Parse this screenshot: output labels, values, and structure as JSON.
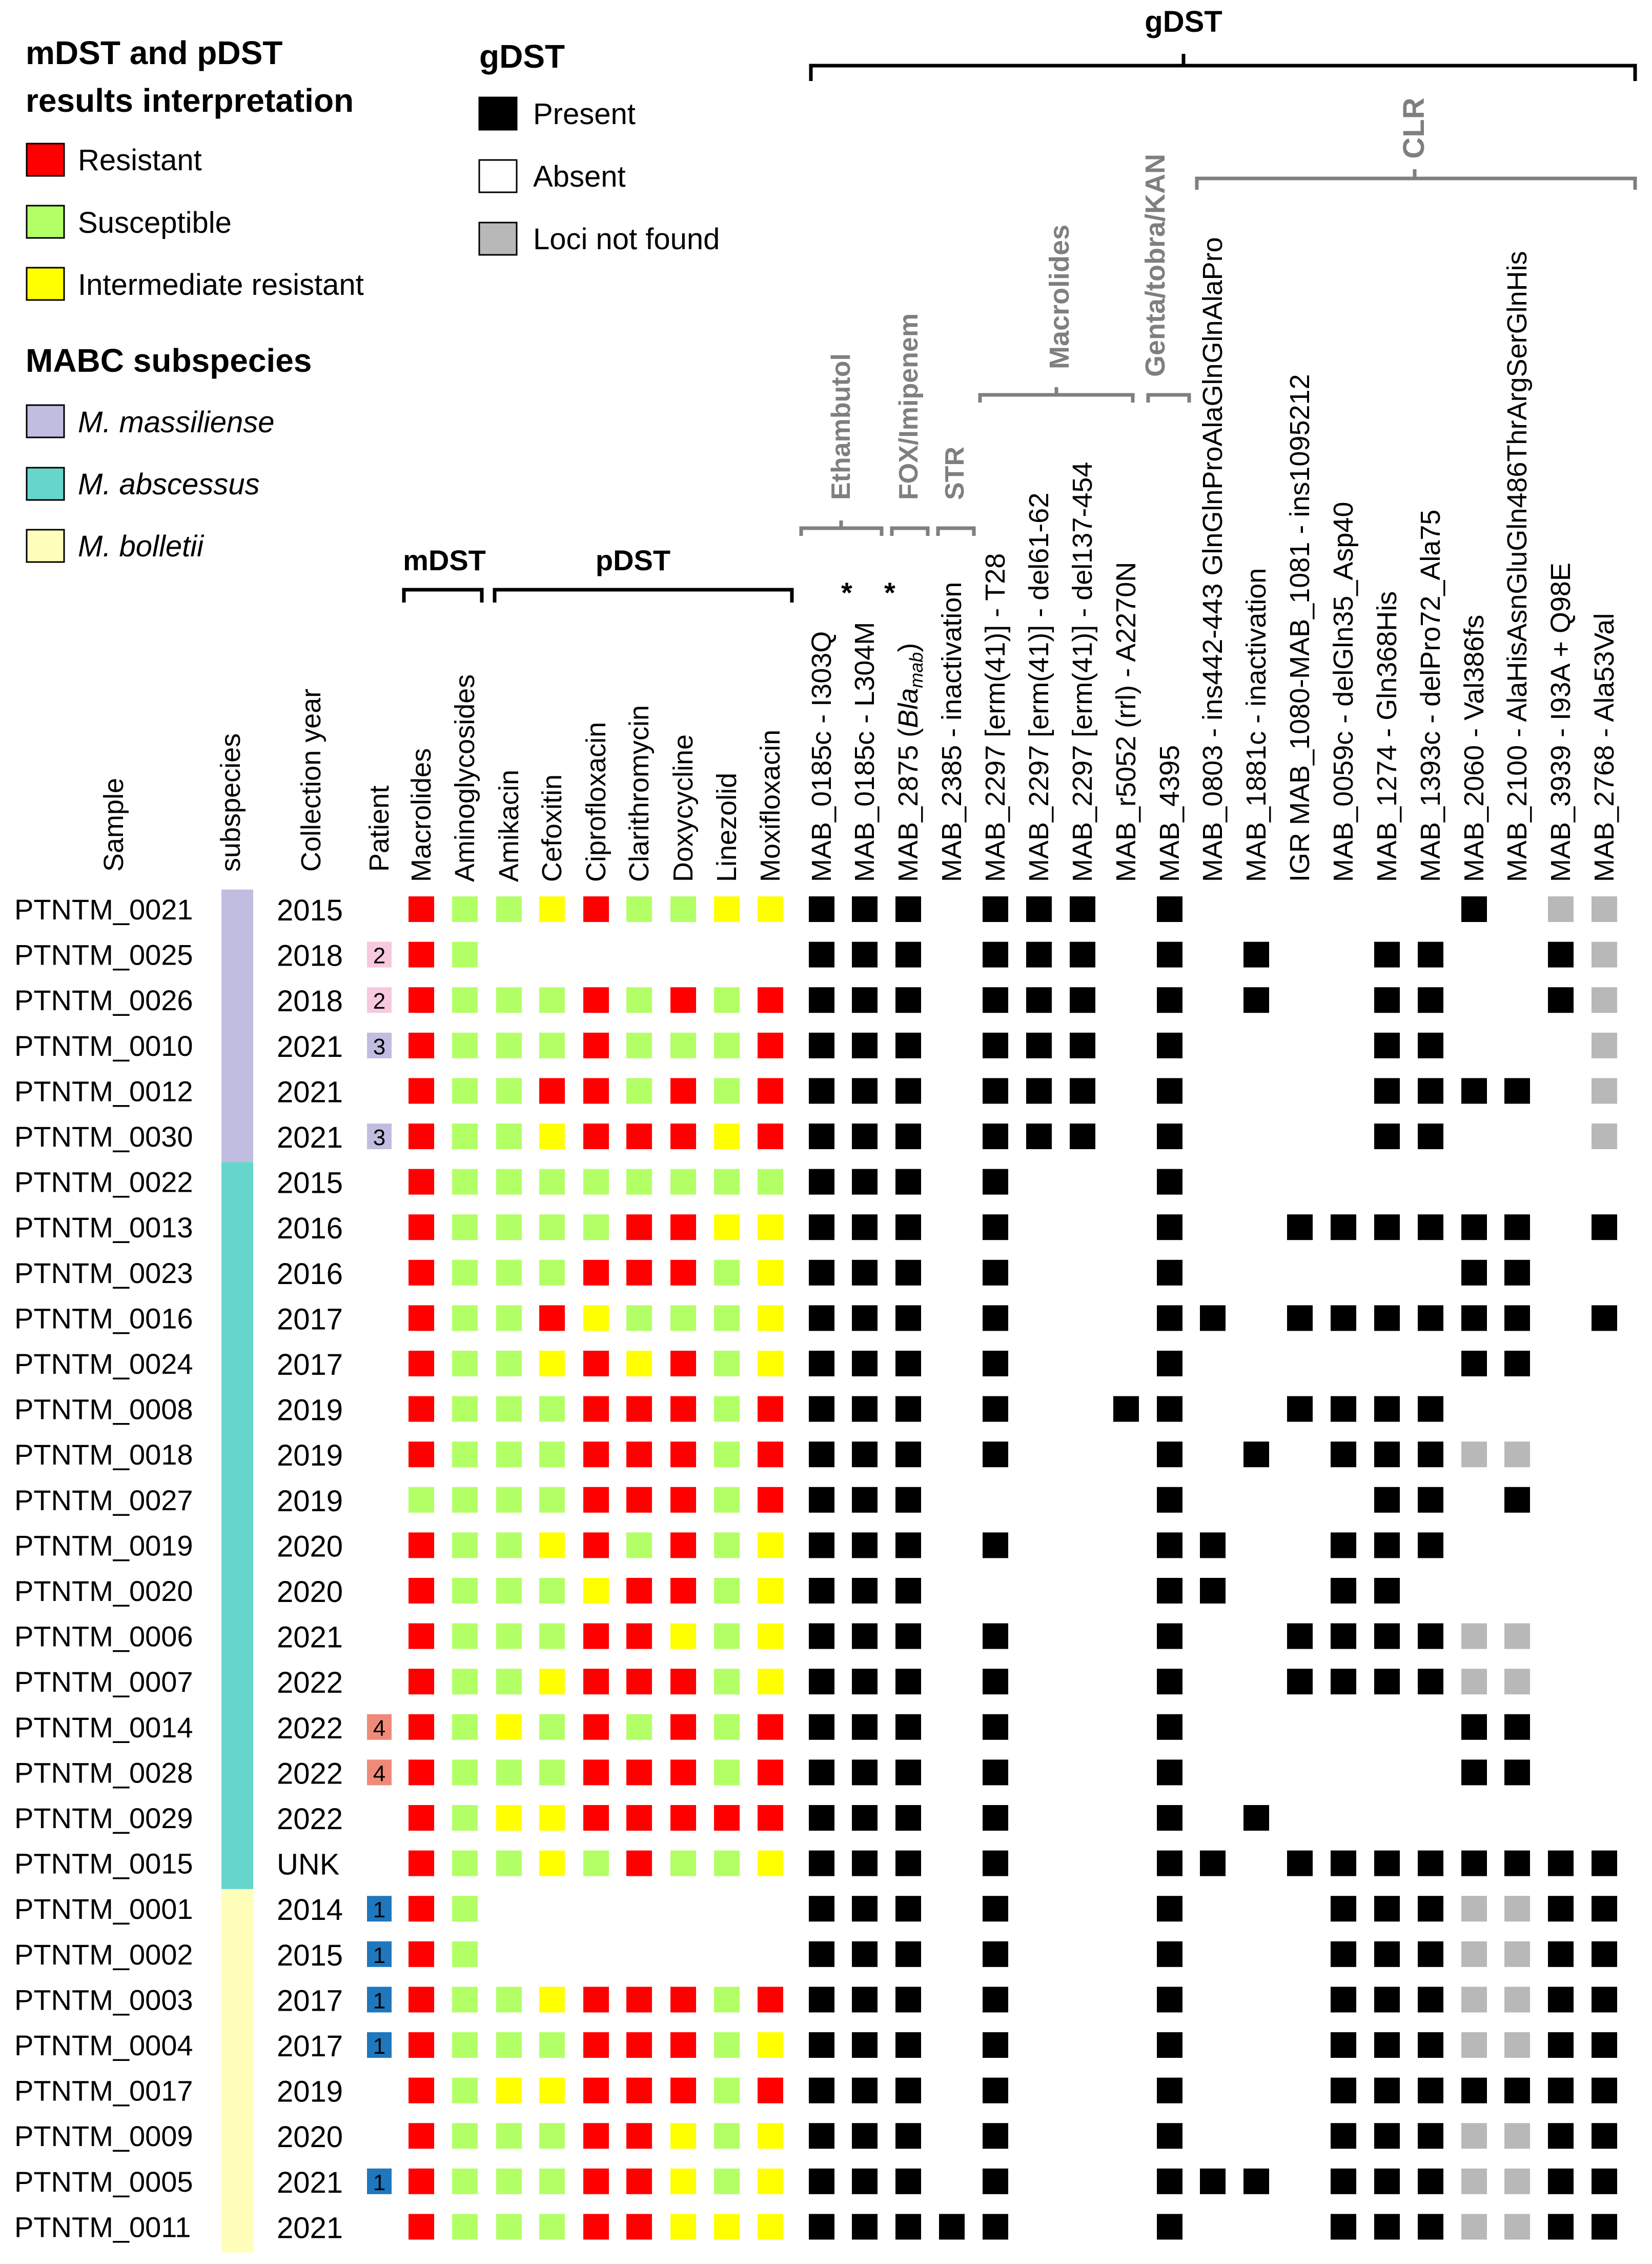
{
  "legend": {
    "interp_title_line1": "mDST and pDST",
    "interp_title_line2": "results interpretation",
    "resistant": "Resistant",
    "susceptible": "Susceptible",
    "intermediate": "Intermediate resistant",
    "subspecies_title": "MABC subspecies",
    "massiliense": "M. massiliense",
    "abscessus": "M. abscessus",
    "bolletii": "M. bolletii",
    "gdst_title": "gDST",
    "present": "Present",
    "absent": "Absent",
    "not_found": "Loci not found"
  },
  "colors": {
    "R": "#ff0000",
    "S": "#b3ff66",
    "I": "#ffff00",
    "P": "#000000",
    "N": "#b8b8b8",
    "massiliense": "#c0bde0",
    "abscessus": "#66d6cc",
    "bolletii": "#ffffbb",
    "patient1": "#1f77bd",
    "patient2": "#f7c8de",
    "patient3": "#c0bde0",
    "patient4": "#f08a78",
    "bracket_grey": "#7f7f7f"
  },
  "headers": {
    "sample": "Sample",
    "subspecies": "subspecies",
    "year": "Collection year",
    "patient": "Patient",
    "mdst": "mDST",
    "pdst": "pDST",
    "gdst": "gDST"
  },
  "column_groups": {
    "ethambutol": "Ethambutol",
    "fox": "FOX/Imipenem",
    "str": "STR",
    "macrolides": "Macrolides",
    "genta": "Genta/tobra/KAN",
    "clr": "CLR"
  },
  "mdst_columns": [
    "Macrolides",
    "Aminoglycosides"
  ],
  "pdst_columns": [
    "Amikacin",
    "Cefoxitin",
    "Ciprofloxacin",
    "Clarithromycin",
    "Doxycycline",
    "Linezolid",
    "Moxifloxacin"
  ],
  "gdst_columns": [
    "MAB_0185c - I303Q",
    "MAB_0185c - L304M",
    "MAB_2875 (Bla",
    "MAB_2385 - inactivation",
    "MAB_2297 [erm(41)] - T28",
    "MAB_2297 [erm(41)] - del61-62",
    "MAB_2297 [erm(41)] - del137-454",
    "MAB_r5052 (rrl) - A2270N",
    "MAB_4395",
    "MAB_0803 - ins442-443 GlnGlnProAlaGlnGlnAlaPro",
    "MAB_1881c - inactivation",
    "IGR MAB_1080-MAB_1081 - ins1095212",
    "MAB_0059c - delGln35_Asp40",
    "MAB_1274 - Gln368His",
    "MAB_1393c - delPro72_Ala75",
    "MAB_2060 - Val386fs",
    "MAB_2100 - AlaHisAsnGluGln486ThrArgSerGlnHis",
    "MAB_3939 - I93A + Q98E",
    "MAB_2768 - Ala53Val"
  ],
  "gdst_col2_suffix": "mab",
  "gdst_col2_close": ")",
  "asterisk": "*",
  "rows": [
    {
      "sample": "PTNTM_0021",
      "sub": "massiliense",
      "year": "2015",
      "patient": "",
      "mdst": "RS",
      "pdst": "SIRSSII",
      "gdst": "PPP-PPP-P------P-NN"
    },
    {
      "sample": "PTNTM_0025",
      "sub": "massiliense",
      "year": "2018",
      "patient": "2",
      "mdst": "RS",
      "pdst": "-------",
      "gdst": "PPP-PPP-P-P--PP--PN"
    },
    {
      "sample": "PTNTM_0026",
      "sub": "massiliense",
      "year": "2018",
      "patient": "2",
      "mdst": "RS",
      "pdst": "SSRSRSR",
      "gdst": "PPP-PPP-P-P--PP--PN"
    },
    {
      "sample": "PTNTM_0010",
      "sub": "massiliense",
      "year": "2021",
      "patient": "3",
      "mdst": "RS",
      "pdst": "SSRSSSR",
      "gdst": "PPP-PPP-P----PP---N"
    },
    {
      "sample": "PTNTM_0012",
      "sub": "massiliense",
      "year": "2021",
      "patient": "",
      "mdst": "RS",
      "pdst": "SRRSRSR",
      "gdst": "PPP-PPP-P----PPPP-N"
    },
    {
      "sample": "PTNTM_0030",
      "sub": "massiliense",
      "year": "2021",
      "patient": "3",
      "mdst": "RS",
      "pdst": "SIRRRIR",
      "gdst": "PPP-PPP-P----PP---N"
    },
    {
      "sample": "PTNTM_0022",
      "sub": "abscessus",
      "year": "2015",
      "patient": "",
      "mdst": "RS",
      "pdst": "SSSSSSS",
      "gdst": "PPP-P---P----------"
    },
    {
      "sample": "PTNTM_0013",
      "sub": "abscessus",
      "year": "2016",
      "patient": "",
      "mdst": "RS",
      "pdst": "SSSRRII",
      "gdst": "PPP-P---P--PPPPPP-P"
    },
    {
      "sample": "PTNTM_0023",
      "sub": "abscessus",
      "year": "2016",
      "patient": "",
      "mdst": "RS",
      "pdst": "SSRRRSI",
      "gdst": "PPP-P---P------PP--"
    },
    {
      "sample": "PTNTM_0016",
      "sub": "abscessus",
      "year": "2017",
      "patient": "",
      "mdst": "RS",
      "pdst": "SRISSSI",
      "gdst": "PPP-P---PP-PPPPPP-P"
    },
    {
      "sample": "PTNTM_0024",
      "sub": "abscessus",
      "year": "2017",
      "patient": "",
      "mdst": "RS",
      "pdst": "SIRIRSI",
      "gdst": "PPP-P---P------PP--"
    },
    {
      "sample": "PTNTM_0008",
      "sub": "abscessus",
      "year": "2019",
      "patient": "",
      "mdst": "RS",
      "pdst": "SSRRRSR",
      "gdst": "PPP-P--PP--PPPP----"
    },
    {
      "sample": "PTNTM_0018",
      "sub": "abscessus",
      "year": "2019",
      "patient": "",
      "mdst": "RS",
      "pdst": "SSRRRSR",
      "gdst": "PPP-P---P-P-PPPNN--"
    },
    {
      "sample": "PTNTM_0027",
      "sub": "abscessus",
      "year": "2019",
      "patient": "",
      "mdst": "SS",
      "pdst": "SSRRRSR",
      "gdst": "PPP-----P----PP-P--"
    },
    {
      "sample": "PTNTM_0019",
      "sub": "abscessus",
      "year": "2020",
      "patient": "",
      "mdst": "RS",
      "pdst": "SIRSRSI",
      "gdst": "PPP-P---PP--PPP----"
    },
    {
      "sample": "PTNTM_0020",
      "sub": "abscessus",
      "year": "2020",
      "patient": "",
      "mdst": "RS",
      "pdst": "SSIRRSI",
      "gdst": "PPP-----PP--PP-----"
    },
    {
      "sample": "PTNTM_0006",
      "sub": "abscessus",
      "year": "2021",
      "patient": "",
      "mdst": "RS",
      "pdst": "SSRRISI",
      "gdst": "PPP-P---P--PPPPNN--"
    },
    {
      "sample": "PTNTM_0007",
      "sub": "abscessus",
      "year": "2022",
      "patient": "",
      "mdst": "RS",
      "pdst": "SIRRRSI",
      "gdst": "PPP-P---P--PPPPNN--"
    },
    {
      "sample": "PTNTM_0014",
      "sub": "abscessus",
      "year": "2022",
      "patient": "4",
      "mdst": "RS",
      "pdst": "ISRSRSR",
      "gdst": "PPP-P---P------PP--"
    },
    {
      "sample": "PTNTM_0028",
      "sub": "abscessus",
      "year": "2022",
      "patient": "4",
      "mdst": "RS",
      "pdst": "SSRRRSR",
      "gdst": "PPP-P---P------PP--"
    },
    {
      "sample": "PTNTM_0029",
      "sub": "abscessus",
      "year": "2022",
      "patient": "",
      "mdst": "RS",
      "pdst": "IIRRRRR",
      "gdst": "PPP-P---P-P--------"
    },
    {
      "sample": "PTNTM_0015",
      "sub": "abscessus",
      "year": "UNK",
      "patient": "",
      "mdst": "RS",
      "pdst": "SISRSSI",
      "gdst": "PPP-P---PP-PPPPPPPP"
    },
    {
      "sample": "PTNTM_0001",
      "sub": "bolletii",
      "year": "2014",
      "patient": "1",
      "mdst": "RS",
      "pdst": "-------",
      "gdst": "PPP-P---P---PPPNNPP"
    },
    {
      "sample": "PTNTM_0002",
      "sub": "bolletii",
      "year": "2015",
      "patient": "1",
      "mdst": "RS",
      "pdst": "-------",
      "gdst": "PPP-P---P---PPPNNPP"
    },
    {
      "sample": "PTNTM_0003",
      "sub": "bolletii",
      "year": "2017",
      "patient": "1",
      "mdst": "RS",
      "pdst": "SIRRRSR",
      "gdst": "PPP-P---P---PPPNNPP"
    },
    {
      "sample": "PTNTM_0004",
      "sub": "bolletii",
      "year": "2017",
      "patient": "1",
      "mdst": "RS",
      "pdst": "SSRRRSI",
      "gdst": "PPP-P---P---PPPNNPP"
    },
    {
      "sample": "PTNTM_0017",
      "sub": "bolletii",
      "year": "2019",
      "patient": "",
      "mdst": "RS",
      "pdst": "IIRRRSR",
      "gdst": "PPP-P---P---PPPPPPP"
    },
    {
      "sample": "PTNTM_0009",
      "sub": "bolletii",
      "year": "2020",
      "patient": "",
      "mdst": "RS",
      "pdst": "SSRRISI",
      "gdst": "PPP-P---P---PPPNNPP"
    },
    {
      "sample": "PTNTM_0005",
      "sub": "bolletii",
      "year": "2021",
      "patient": "1",
      "mdst": "RS",
      "pdst": "SSRRISI",
      "gdst": "PPP-P---PPP-PPPNNPP"
    },
    {
      "sample": "PTNTM_0011",
      "sub": "bolletii",
      "year": "2021",
      "patient": "",
      "mdst": "RS",
      "pdst": "SSRRIII",
      "gdst": "PPPPP---P---PPPNNPP"
    }
  ]
}
